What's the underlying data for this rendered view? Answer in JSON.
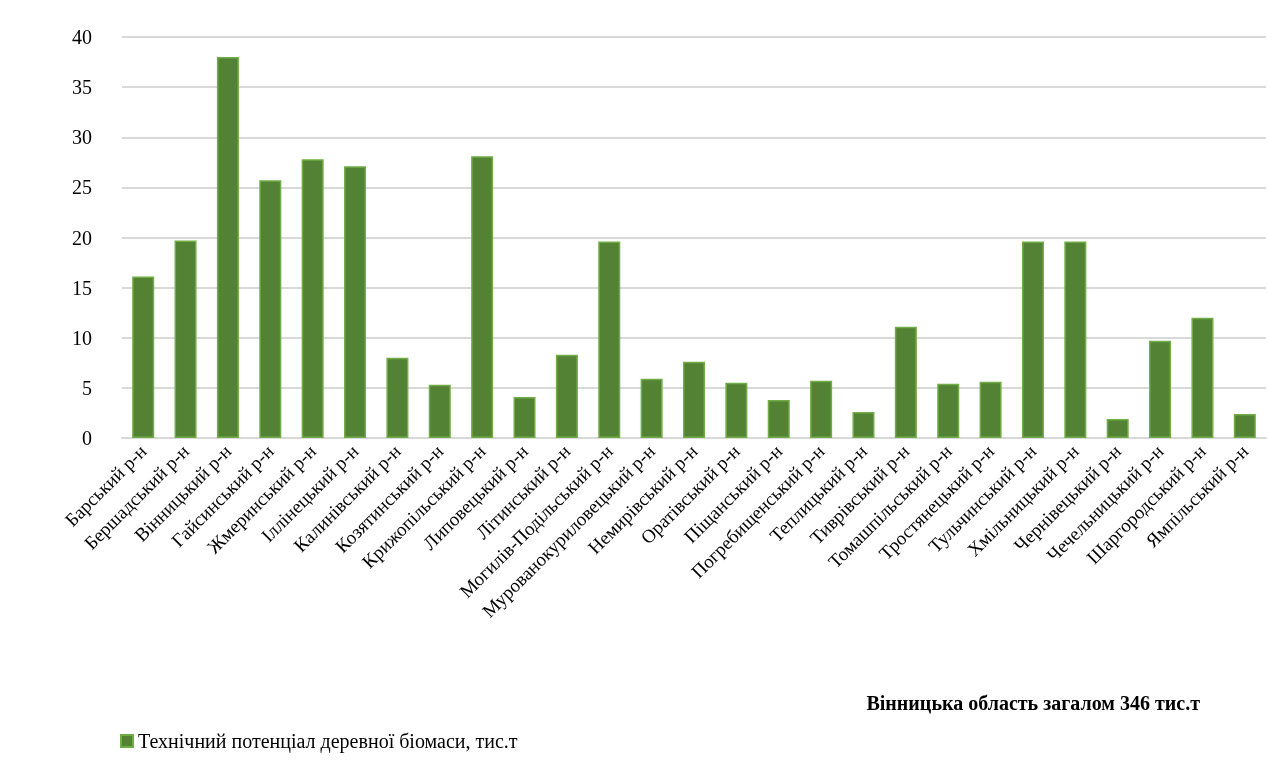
{
  "chart_data": {
    "type": "bar",
    "categories": [
      "Барський р-н",
      "Бершадський р-н",
      "Вінницький р-н",
      "Гайсинський р-н",
      "Жмеринський р-н",
      "Іллінецький р-н",
      "Калинівський р-н",
      "Козятинський р-н",
      "Крижопільський р-н",
      "Липовецький р-н",
      "Літинський р-н",
      "Могилів-Подільський р-н",
      "Мурованокуриловецький р-н",
      "Немирівський р-н",
      "Оратівський р-н",
      "Піщанський р-н",
      "Погребищенський р-н",
      "Теплицький р-н",
      "Тиврівський р-н",
      "Томашпільський р-н",
      "Тростянецький р-н",
      "Тульчинський р-н",
      "Хмільницький р-н",
      "Чернівецький р-н",
      "Чечельницький р-н",
      "Шаргородський р-н",
      "Ямпільський р-н"
    ],
    "series": [
      {
        "name": "Технічний потенціал деревної біомаси, тис.т",
        "color": "#548235",
        "values": [
          16.1,
          19.7,
          38.0,
          25.7,
          27.8,
          27.1,
          8.0,
          5.3,
          28.1,
          4.1,
          8.3,
          19.6,
          5.9,
          7.6,
          5.5,
          3.8,
          5.7,
          2.6,
          11.1,
          5.4,
          5.6,
          19.6,
          19.6,
          1.9,
          9.7,
          12.0,
          2.4
        ]
      }
    ],
    "ylim": [
      0,
      40
    ],
    "yticks": [
      0,
      5,
      10,
      15,
      20,
      25,
      30,
      35,
      40
    ],
    "grid": "y",
    "legend": "bottom left",
    "annotations": [
      "Вінницька область загалом 346 тис.т"
    ]
  }
}
